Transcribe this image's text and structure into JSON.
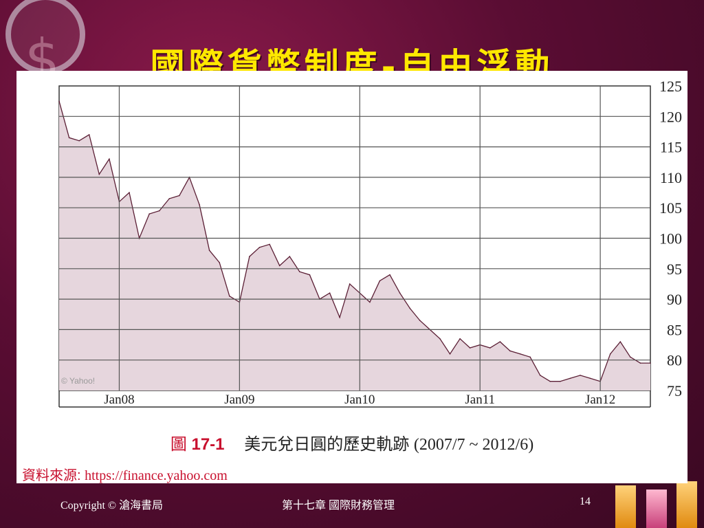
{
  "slide": {
    "title": "國際貨幣制度-自由浮動"
  },
  "caption": {
    "label": "圖",
    "number": "17-1",
    "text": "美元兌日圓的歷史軌跡",
    "period": "(2007/7 ~ 2012/6)"
  },
  "source": {
    "label": "資料來源:",
    "url": "https://finance.yahoo.com"
  },
  "footer": {
    "copyright": "Copyright © 滄海書局",
    "chapter": "第十七章 國際財務管理",
    "page": "14"
  },
  "colors": {
    "title": "#ffe800",
    "area_fill": "#e6d6dd",
    "line": "#5a1e34",
    "caption_accent": "#c8102e"
  },
  "chart_data": {
    "type": "area",
    "title": "",
    "xlabel": "",
    "ylabel": "",
    "watermark": "© Yahoo!",
    "x_range": [
      "2007-07",
      "2012-06"
    ],
    "ylim": [
      75,
      125
    ],
    "y_ticks": [
      75,
      80,
      85,
      90,
      95,
      100,
      105,
      110,
      115,
      120,
      125
    ],
    "x_ticks": [
      {
        "label": "Jan08",
        "date": "2008-01"
      },
      {
        "label": "Jan09",
        "date": "2009-01"
      },
      {
        "label": "Jan10",
        "date": "2010-01"
      },
      {
        "label": "Jan11",
        "date": "2011-01"
      },
      {
        "label": "Jan12",
        "date": "2012-01"
      }
    ],
    "grid": true,
    "series": [
      {
        "points": [
          [
            "2007-07",
            122.5
          ],
          [
            "2007-08",
            116.5
          ],
          [
            "2007-09",
            116
          ],
          [
            "2007-10",
            117
          ],
          [
            "2007-11",
            110.5
          ],
          [
            "2007-12",
            113
          ],
          [
            "2008-01",
            106
          ],
          [
            "2008-02",
            107.5
          ],
          [
            "2008-03",
            100
          ],
          [
            "2008-04",
            104
          ],
          [
            "2008-05",
            104.5
          ],
          [
            "2008-06",
            106.5
          ],
          [
            "2008-07",
            107
          ],
          [
            "2008-08",
            110
          ],
          [
            "2008-09",
            105.5
          ],
          [
            "2008-10",
            98
          ],
          [
            "2008-11",
            96
          ],
          [
            "2008-12",
            90.5
          ],
          [
            "2009-01",
            89.5
          ],
          [
            "2009-02",
            97
          ],
          [
            "2009-03",
            98.5
          ],
          [
            "2009-04",
            99
          ],
          [
            "2009-05",
            95.5
          ],
          [
            "2009-06",
            97
          ],
          [
            "2009-07",
            94.5
          ],
          [
            "2009-08",
            94
          ],
          [
            "2009-09",
            90
          ],
          [
            "2009-10",
            91
          ],
          [
            "2009-11",
            87
          ],
          [
            "2009-12",
            92.5
          ],
          [
            "2010-01",
            91
          ],
          [
            "2010-02",
            89.5
          ],
          [
            "2010-03",
            93
          ],
          [
            "2010-04",
            94
          ],
          [
            "2010-05",
            91
          ],
          [
            "2010-06",
            88.5
          ],
          [
            "2010-07",
            86.5
          ],
          [
            "2010-08",
            85
          ],
          [
            "2010-09",
            83.5
          ],
          [
            "2010-10",
            81
          ],
          [
            "2010-11",
            83.5
          ],
          [
            "2010-12",
            82
          ],
          [
            "2011-01",
            82.5
          ],
          [
            "2011-02",
            82
          ],
          [
            "2011-03",
            83
          ],
          [
            "2011-04",
            81.5
          ],
          [
            "2011-05",
            81
          ],
          [
            "2011-06",
            80.5
          ],
          [
            "2011-07",
            77.5
          ],
          [
            "2011-08",
            76.5
          ],
          [
            "2011-09",
            76.5
          ],
          [
            "2011-10",
            77
          ],
          [
            "2011-11",
            77.5
          ],
          [
            "2011-12",
            77
          ],
          [
            "2012-01",
            76.5
          ],
          [
            "2012-02",
            81
          ],
          [
            "2012-03",
            83
          ],
          [
            "2012-04",
            80.5
          ],
          [
            "2012-05",
            79.5
          ],
          [
            "2012-06",
            79.5
          ]
        ]
      }
    ]
  }
}
